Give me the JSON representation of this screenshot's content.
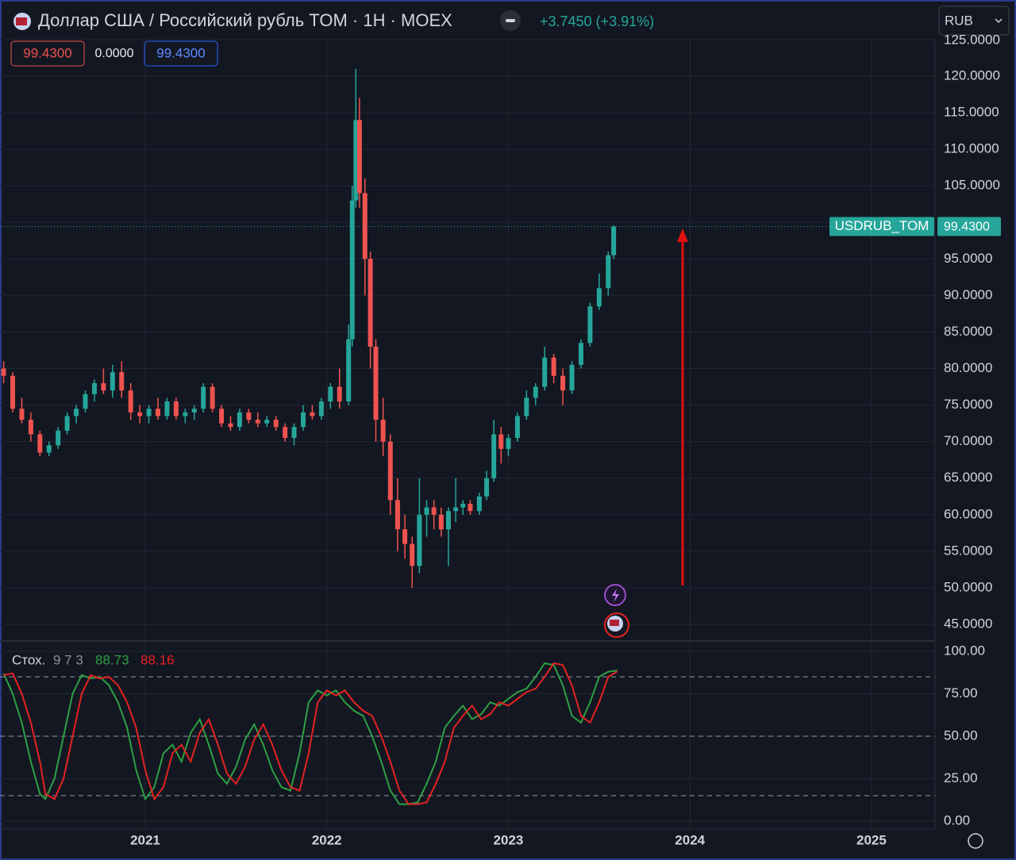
{
  "header": {
    "title": "Доллар США / Российский рубль TOM · 1H · MOEX",
    "change": "+3.7450 (+3.91%)",
    "bid": "99.4300",
    "spread": "0.0000",
    "ask": "99.4300",
    "currency": "RUB"
  },
  "chart_data": [
    {
      "type": "candlestick",
      "up_color": "#26a69a",
      "down_color": "#ef5350",
      "x": [
        2020.22,
        2020.27,
        2020.32,
        2020.37,
        2020.42,
        2020.47,
        2020.52,
        2020.57,
        2020.62,
        2020.67,
        2020.72,
        2020.77,
        2020.82,
        2020.87,
        2020.92,
        2020.97,
        2021.02,
        2021.07,
        2021.12,
        2021.17,
        2021.22,
        2021.27,
        2021.32,
        2021.37,
        2021.42,
        2021.47,
        2021.52,
        2021.57,
        2021.62,
        2021.67,
        2021.72,
        2021.77,
        2021.82,
        2021.87,
        2021.92,
        2021.97,
        2022.02,
        2022.07,
        2022.12,
        2022.14,
        2022.16,
        2022.18,
        2022.21,
        2022.24,
        2022.27,
        2022.31,
        2022.35,
        2022.39,
        2022.43,
        2022.47,
        2022.51,
        2022.55,
        2022.59,
        2022.63,
        2022.67,
        2022.71,
        2022.75,
        2022.79,
        2022.84,
        2022.88,
        2022.92,
        2022.96,
        2023.0,
        2023.05,
        2023.1,
        2023.15,
        2023.2,
        2023.25,
        2023.3,
        2023.35,
        2023.4,
        2023.45,
        2023.5,
        2023.55,
        2023.58
      ],
      "open": [
        80,
        79,
        74.5,
        73,
        71,
        68.5,
        69.5,
        71.5,
        73.5,
        74.5,
        76.5,
        78,
        77,
        79.5,
        77,
        74,
        73.5,
        74.5,
        73.5,
        75.5,
        73.5,
        74,
        74.5,
        77.5,
        74.5,
        72.5,
        72,
        74,
        73,
        72.5,
        73,
        72,
        70.5,
        72,
        74,
        73.5,
        75.5,
        77.5,
        75.5,
        84,
        103,
        114,
        104,
        95,
        83,
        73,
        70,
        62,
        58,
        56,
        53,
        60,
        61,
        60,
        58,
        60.5,
        61,
        61.5,
        60.5,
        62.5,
        65,
        71,
        69,
        70.5,
        73.5,
        76,
        77.5,
        81.5,
        79,
        77,
        80.5,
        83.5,
        88.5,
        91,
        95.5
      ],
      "high": [
        81,
        79.5,
        76,
        74,
        71.5,
        70,
        72,
        74,
        75,
        77,
        78.5,
        80,
        80.5,
        81,
        78,
        75,
        75,
        76,
        76,
        76,
        74.5,
        75,
        78,
        78,
        75,
        73.5,
        74.5,
        74.5,
        74,
        73.5,
        73.5,
        72.5,
        72.5,
        75,
        75,
        76,
        78,
        80,
        86,
        105,
        121,
        117,
        106,
        96,
        84,
        76,
        71,
        65,
        60,
        57,
        65,
        62,
        62,
        61,
        61,
        65,
        62,
        62,
        63,
        66,
        73,
        72,
        71,
        74,
        77,
        78,
        83,
        82,
        80,
        81,
        84,
        89,
        93,
        96,
        99.6
      ],
      "low": [
        78,
        74,
        72.5,
        70,
        68,
        68,
        69,
        71,
        72.5,
        74,
        75.5,
        76.5,
        76,
        76,
        73,
        72.5,
        72.5,
        73,
        73,
        73,
        72.5,
        73,
        74,
        74,
        72,
        71.5,
        71.5,
        72.5,
        72,
        72,
        71.5,
        70,
        69.5,
        71.5,
        73,
        73,
        74.5,
        74.5,
        75,
        83,
        102,
        102,
        90,
        80,
        70,
        68,
        60,
        55,
        54,
        50,
        52,
        57,
        58,
        57,
        53,
        59,
        60,
        60,
        60,
        62,
        64.5,
        67,
        68,
        70,
        73,
        75,
        77,
        78,
        75,
        76.5,
        80,
        83,
        88,
        90,
        95
      ],
      "close": [
        79,
        74.5,
        73,
        71,
        68.5,
        69.5,
        71.5,
        73.5,
        74.5,
        76.5,
        78,
        77,
        79.5,
        77,
        74,
        73.5,
        74.5,
        73.5,
        75.5,
        73.5,
        74,
        74.5,
        77.5,
        74.5,
        72.5,
        72,
        74,
        73,
        72.5,
        73,
        72,
        70.5,
        72,
        74,
        73.5,
        75.5,
        77.5,
        75.5,
        84,
        103,
        114,
        104,
        95,
        83,
        73,
        70,
        62,
        58,
        56,
        53,
        60,
        61,
        60,
        58,
        60.5,
        61,
        61.5,
        60.5,
        62.5,
        65,
        71,
        69,
        70.5,
        73.5,
        76,
        77.5,
        81.5,
        79,
        77,
        80.5,
        83.5,
        88.5,
        91,
        95.5,
        99.43
      ],
      "xlim": [
        2020.2,
        2025.35
      ],
      "ylim": [
        42.72,
        125.21
      ],
      "yticks": [
        {
          "value": 45,
          "label": "45.0000"
        },
        {
          "value": 50,
          "label": "50.0000"
        },
        {
          "value": 55,
          "label": "55.0000"
        },
        {
          "value": 60,
          "label": "60.0000"
        },
        {
          "value": 65,
          "label": "65.0000"
        },
        {
          "value": 70,
          "label": "70.0000"
        },
        {
          "value": 75,
          "label": "75.0000"
        },
        {
          "value": 80,
          "label": "80.0000"
        },
        {
          "value": 85,
          "label": "85.0000"
        },
        {
          "value": 90,
          "label": "90.0000"
        },
        {
          "value": 95,
          "label": "95.0000"
        },
        {
          "value": 100,
          "label": "100.0000"
        },
        {
          "value": 105,
          "label": "105.0000"
        },
        {
          "value": 110,
          "label": "110.0000"
        },
        {
          "value": 115,
          "label": "115.0000"
        },
        {
          "value": 120,
          "label": "120.0000"
        },
        {
          "value": 125,
          "label": "125.0000"
        }
      ],
      "last_price": {
        "value": 99.43,
        "label": "99.4300"
      },
      "symbol_label": "USDRUB_TOM",
      "grid": true
    },
    {
      "type": "line",
      "title": "Стох.",
      "params": "9 7 3",
      "x": [
        2020.22,
        2020.27,
        2020.32,
        2020.37,
        2020.42,
        2020.45,
        2020.5,
        2020.55,
        2020.6,
        2020.65,
        2020.7,
        2020.75,
        2020.8,
        2020.85,
        2020.9,
        2020.95,
        2021.0,
        2021.05,
        2021.1,
        2021.15,
        2021.2,
        2021.25,
        2021.3,
        2021.35,
        2021.4,
        2021.45,
        2021.5,
        2021.55,
        2021.6,
        2021.65,
        2021.7,
        2021.75,
        2021.8,
        2021.85,
        2021.9,
        2021.95,
        2022.0,
        2022.05,
        2022.1,
        2022.15,
        2022.2,
        2022.25,
        2022.3,
        2022.35,
        2022.4,
        2022.45,
        2022.5,
        2022.55,
        2022.6,
        2022.65,
        2022.7,
        2022.75,
        2022.8,
        2022.85,
        2022.9,
        2022.95,
        2023.0,
        2023.05,
        2023.1,
        2023.15,
        2023.2,
        2023.25,
        2023.3,
        2023.35,
        2023.4,
        2023.45,
        2023.5,
        2023.55,
        2023.6
      ],
      "series": [
        {
          "color": "#2ea043",
          "values": [
            87,
            75,
            58,
            35,
            16,
            13,
            25,
            50,
            75,
            86,
            84,
            85,
            80,
            70,
            55,
            30,
            13,
            20,
            40,
            45,
            35,
            52,
            60,
            45,
            28,
            22,
            32,
            48,
            57,
            45,
            30,
            20,
            18,
            40,
            70,
            77,
            74,
            77,
            70,
            65,
            62,
            50,
            35,
            18,
            10,
            10,
            11,
            22,
            35,
            55,
            62,
            68,
            60,
            63,
            70,
            68,
            72,
            76,
            78,
            85,
            93,
            92,
            80,
            62,
            58,
            70,
            85,
            88,
            88.73
          ]
        },
        {
          "color": "#e52222",
          "values": [
            86,
            87,
            75,
            58,
            35,
            16,
            13,
            25,
            50,
            75,
            86,
            84,
            85,
            80,
            70,
            55,
            30,
            13,
            20,
            40,
            45,
            35,
            52,
            60,
            45,
            28,
            22,
            32,
            48,
            57,
            45,
            30,
            20,
            18,
            40,
            70,
            77,
            74,
            77,
            70,
            65,
            62,
            50,
            35,
            18,
            10,
            10,
            11,
            22,
            35,
            55,
            62,
            68,
            60,
            63,
            70,
            68,
            72,
            76,
            78,
            85,
            93,
            92,
            80,
            62,
            58,
            70,
            85,
            88.16
          ]
        }
      ],
      "hlines": [
        85,
        50,
        15
      ],
      "xlim": [
        2020.2,
        2025.35
      ],
      "ylim": [
        -4.67,
        106.07
      ],
      "xticks": [
        2021,
        2022,
        2023,
        2024,
        2025
      ],
      "yticks": [
        {
          "value": 0,
          "label": "0.00"
        },
        {
          "value": 25,
          "label": "25.00"
        },
        {
          "value": 50,
          "label": "50.00"
        },
        {
          "value": 75,
          "label": "75.00"
        },
        {
          "value": 100,
          "label": "100.00"
        }
      ],
      "grid": true
    }
  ]
}
